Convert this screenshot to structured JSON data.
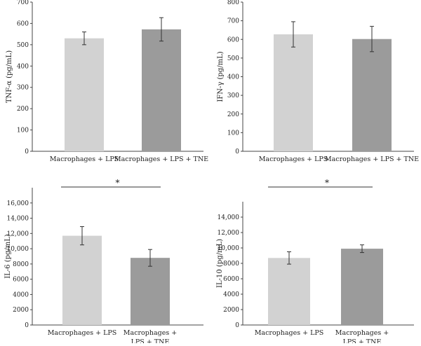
{
  "colors": {
    "bar_light": "#d2d2d2",
    "bar_dark": "#9b9b9b",
    "axis": "#444444",
    "error": "#333333"
  },
  "chart_data": [
    {
      "type": "bar",
      "ylabel": "TNF-α (pg/mL)",
      "ylim": [
        0,
        700
      ],
      "yticks": [
        0,
        100,
        200,
        300,
        400,
        500,
        600,
        700
      ],
      "tick_labels": [
        "0",
        "100",
        "200",
        "300",
        "400",
        "500",
        "600",
        "700"
      ],
      "categories": [
        [
          "Macrophages + LPS"
        ],
        [
          "Macrophages + LPS + TNE"
        ]
      ],
      "values": [
        530,
        572
      ],
      "errors": [
        30,
        55
      ],
      "significance": null
    },
    {
      "type": "bar",
      "ylabel": "IFN-γ (pg/mL)",
      "ylim": [
        0,
        800
      ],
      "yticks": [
        0,
        100,
        200,
        300,
        400,
        500,
        600,
        700,
        800
      ],
      "tick_labels": [
        "0",
        "100",
        "200",
        "300",
        "400",
        "500",
        "600",
        "700",
        "800"
      ],
      "categories": [
        [
          "Macrophages + LPS"
        ],
        [
          "Macrophages + LPS + TNE"
        ]
      ],
      "values": [
        627,
        602
      ],
      "errors": [
        68,
        68
      ],
      "significance": null
    },
    {
      "type": "bar",
      "ylabel": "IL-6 (pg/mL)",
      "ylim": [
        0,
        18000
      ],
      "yticks": [
        0,
        2000,
        4000,
        6000,
        8000,
        10000,
        12000,
        14000,
        16000
      ],
      "tick_labels": [
        "0",
        "2000",
        "4000",
        "6000",
        "8000",
        "10,000",
        "12,000",
        "14,000",
        "16,000"
      ],
      "categories": [
        [
          "Macrophages + LPS"
        ],
        [
          "Macrophages +",
          "LPS + TNE"
        ]
      ],
      "values": [
        11700,
        8800
      ],
      "errors": [
        1200,
        1100
      ],
      "significance": "*"
    },
    {
      "type": "bar",
      "ylabel": "IL-10 (pg/mL)",
      "ylim": [
        0,
        16000
      ],
      "yticks": [
        0,
        2000,
        4000,
        6000,
        8000,
        10000,
        12000,
        14000
      ],
      "tick_labels": [
        "0",
        "2000",
        "4000",
        "6000",
        "8000",
        "10,000",
        "12,000",
        "14,000"
      ],
      "categories": [
        [
          "Macrophages + LPS"
        ],
        [
          "Macrophages +",
          "LPS + TNE"
        ]
      ],
      "values": [
        8700,
        9900
      ],
      "errors": [
        800,
        500
      ],
      "significance": "*"
    }
  ]
}
